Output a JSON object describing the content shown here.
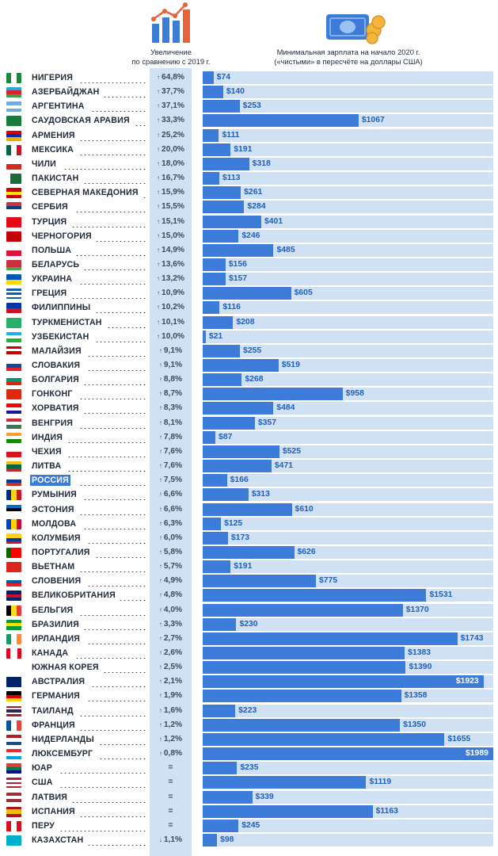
{
  "header": {
    "left_line1": "Увеличение",
    "left_line2": "по сравнению с 2019 г.",
    "right_line1": "Минимальная зарплата на начало 2020 г.",
    "right_line2": "(«чистыми» в пересчёте на доллары США)"
  },
  "colors": {
    "bar": "#3d7bd8",
    "lane": "#cfe1f3",
    "text": "#1f2a3a",
    "highlight": "#3d7bd8"
  },
  "chart_data": {
    "type": "bar",
    "orientation": "horizontal",
    "xlim": [
      0,
      1989
    ],
    "value_prefix": "$",
    "grid": false,
    "rows": [
      {
        "country": "НИГЕРИЯ",
        "change": "64,8%",
        "dir": "up",
        "wage": 74,
        "flag": [
          "#1a8a3a",
          "#ffffff",
          "#1a8a3a"
        ],
        "flag_dir": "v"
      },
      {
        "country": "АЗЕРБАЙДЖАН",
        "change": "37,7%",
        "dir": "up",
        "wage": 140,
        "flag": [
          "#2aa5dd",
          "#d9232e",
          "#3aa14a"
        ],
        "flag_dir": "h"
      },
      {
        "country": "АРГЕНТИНА",
        "change": "37,1%",
        "dir": "up",
        "wage": 253,
        "flag": [
          "#75aadb",
          "#ffffff",
          "#75aadb"
        ],
        "flag_dir": "h"
      },
      {
        "country": "САУДОВСКАЯ АРАВИЯ",
        "change": "33,3%",
        "dir": "up",
        "wage": 1067,
        "flag": [
          "#1a7a3a"
        ],
        "flag_dir": "h"
      },
      {
        "country": "АРМЕНИЯ",
        "change": "25,2%",
        "dir": "up",
        "wage": 111,
        "flag": [
          "#d90012",
          "#0033a0",
          "#f2a800"
        ],
        "flag_dir": "h"
      },
      {
        "country": "МЕКСИКА",
        "change": "20,0%",
        "dir": "up",
        "wage": 191,
        "flag": [
          "#006847",
          "#ffffff",
          "#ce1126"
        ],
        "flag_dir": "v"
      },
      {
        "country": "ЧИЛИ",
        "change": "18,0%",
        "dir": "up",
        "wage": 318,
        "flag": [
          "#ffffff",
          "#d52b1e"
        ],
        "flag_dir": "h"
      },
      {
        "country": "ПАКИСТАН",
        "change": "16,7%",
        "dir": "up",
        "wage": 113,
        "flag": [
          "#ffffff",
          "#1a6a3a",
          "#1a6a3a",
          "#1a6a3a"
        ],
        "flag_dir": "v"
      },
      {
        "country": "СЕВЕРНАЯ МАКЕДОНИЯ",
        "change": "15,9%",
        "dir": "up",
        "wage": 261,
        "flag": [
          "#d20000",
          "#ffe600",
          "#d20000"
        ],
        "flag_dir": "h"
      },
      {
        "country": "СЕРБИЯ",
        "change": "15,5%",
        "dir": "up",
        "wage": 284,
        "flag": [
          "#c6363c",
          "#0c4076",
          "#ffffff"
        ],
        "flag_dir": "h"
      },
      {
        "country": "ТУРЦИЯ",
        "change": "15,1%",
        "dir": "up",
        "wage": 401,
        "flag": [
          "#e30a17"
        ],
        "flag_dir": "h"
      },
      {
        "country": "ЧЕРНОГОРИЯ",
        "change": "15,0%",
        "dir": "up",
        "wage": 246,
        "flag": [
          "#c40308"
        ],
        "flag_dir": "h"
      },
      {
        "country": "ПОЛЬША",
        "change": "14,9%",
        "dir": "up",
        "wage": 485,
        "flag": [
          "#ffffff",
          "#dc143c"
        ],
        "flag_dir": "h"
      },
      {
        "country": "БЕЛАРУСЬ",
        "change": "13,6%",
        "dir": "up",
        "wage": 156,
        "flag": [
          "#c8313e",
          "#c8313e",
          "#4aa657"
        ],
        "flag_dir": "h"
      },
      {
        "country": "УКРАИНА",
        "change": "13,2%",
        "dir": "up",
        "wage": 157,
        "flag": [
          "#0057b7",
          "#ffd700"
        ],
        "flag_dir": "h"
      },
      {
        "country": "ГРЕЦИЯ",
        "change": "10,9%",
        "dir": "up",
        "wage": 605,
        "flag": [
          "#0d5eaf",
          "#ffffff",
          "#0d5eaf",
          "#ffffff",
          "#0d5eaf"
        ],
        "flag_dir": "h"
      },
      {
        "country": "ФИЛИППИНЫ",
        "change": "10,2%",
        "dir": "up",
        "wage": 116,
        "flag": [
          "#0038a8",
          "#ce1126"
        ],
        "flag_dir": "h"
      },
      {
        "country": "ТУРКМЕНИСТАН",
        "change": "10,1%",
        "dir": "up",
        "wage": 208,
        "flag": [
          "#28ae66"
        ],
        "flag_dir": "h"
      },
      {
        "country": "УЗБЕКИСТАН",
        "change": "10,0%",
        "dir": "up",
        "wage": 21,
        "flag": [
          "#1eb3e6",
          "#ffffff",
          "#1eb53a"
        ],
        "flag_dir": "h"
      },
      {
        "country": "МАЛАЙЗИЯ",
        "change": "9,1%",
        "dir": "up",
        "wage": 255,
        "flag": [
          "#cc0001",
          "#ffffff",
          "#cc0001",
          "#ffffff"
        ],
        "flag_dir": "h"
      },
      {
        "country": "СЛОВАКИЯ",
        "change": "9,1%",
        "dir": "up",
        "wage": 519,
        "flag": [
          "#ffffff",
          "#0b4ea2",
          "#ee1c25"
        ],
        "flag_dir": "h"
      },
      {
        "country": "БОЛГАРИЯ",
        "change": "8,8%",
        "dir": "up",
        "wage": 268,
        "flag": [
          "#ffffff",
          "#00966e",
          "#d62612"
        ],
        "flag_dir": "h"
      },
      {
        "country": "ГОНКОНГ",
        "change": "8,7%",
        "dir": "up",
        "wage": 958,
        "flag": [
          "#de2910"
        ],
        "flag_dir": "h"
      },
      {
        "country": "ХОРВАТИЯ",
        "change": "8,3%",
        "dir": "up",
        "wage": 484,
        "flag": [
          "#ff0000",
          "#ffffff",
          "#171796"
        ],
        "flag_dir": "h"
      },
      {
        "country": "ВЕНГРИЯ",
        "change": "8,1%",
        "dir": "up",
        "wage": 357,
        "flag": [
          "#ce2939",
          "#ffffff",
          "#477050"
        ],
        "flag_dir": "h"
      },
      {
        "country": "ИНДИЯ",
        "change": "7,8%",
        "dir": "up",
        "wage": 87,
        "flag": [
          "#ff9933",
          "#ffffff",
          "#138808"
        ],
        "flag_dir": "h"
      },
      {
        "country": "ЧЕХИЯ",
        "change": "7,6%",
        "dir": "up",
        "wage": 525,
        "flag": [
          "#ffffff",
          "#d7141a"
        ],
        "flag_dir": "h"
      },
      {
        "country": "ЛИТВА",
        "change": "7,6%",
        "dir": "up",
        "wage": 471,
        "flag": [
          "#fdb913",
          "#006a44",
          "#c1272d"
        ],
        "flag_dir": "h"
      },
      {
        "country": "РОССИЯ",
        "change": "7,5%",
        "dir": "up",
        "wage": 166,
        "highlight": true,
        "flag": [
          "#ffffff",
          "#0039a6",
          "#d52b1e"
        ],
        "flag_dir": "h"
      },
      {
        "country": "РУМЫНИЯ",
        "change": "6,6%",
        "dir": "up",
        "wage": 313,
        "flag": [
          "#002b7f",
          "#fcd116",
          "#ce1126"
        ],
        "flag_dir": "v"
      },
      {
        "country": "ЭСТОНИЯ",
        "change": "6,6%",
        "dir": "up",
        "wage": 610,
        "flag": [
          "#0072ce",
          "#000000",
          "#ffffff"
        ],
        "flag_dir": "h"
      },
      {
        "country": "МОЛДОВА",
        "change": "6,3%",
        "dir": "up",
        "wage": 125,
        "flag": [
          "#0046ae",
          "#ffd200",
          "#cc092f"
        ],
        "flag_dir": "v"
      },
      {
        "country": "КОЛУМБИЯ",
        "change": "6,0%",
        "dir": "up",
        "wage": 173,
        "flag": [
          "#fcd116",
          "#fcd116",
          "#003893",
          "#ce1126"
        ],
        "flag_dir": "h"
      },
      {
        "country": "ПОРТУГАЛИЯ",
        "change": "5,8%",
        "dir": "up",
        "wage": 626,
        "flag": [
          "#006600",
          "#ff0000",
          "#ff0000"
        ],
        "flag_dir": "v"
      },
      {
        "country": "ВЬЕТНАМ",
        "change": "5,7%",
        "dir": "up",
        "wage": 191,
        "flag": [
          "#da251d"
        ],
        "flag_dir": "h"
      },
      {
        "country": "СЛОВЕНИЯ",
        "change": "4,9%",
        "dir": "up",
        "wage": 775,
        "flag": [
          "#ffffff",
          "#005da4",
          "#ed1c24"
        ],
        "flag_dir": "h"
      },
      {
        "country": "ВЕЛИКОБРИТАНИЯ",
        "change": "4,8%",
        "dir": "up",
        "wage": 1531,
        "flag": [
          "#012169",
          "#c8102e",
          "#012169"
        ],
        "flag_dir": "h"
      },
      {
        "country": "БЕЛЬГИЯ",
        "change": "4,0%",
        "dir": "up",
        "wage": 1370,
        "flag": [
          "#000000",
          "#fdda24",
          "#ef3340"
        ],
        "flag_dir": "v"
      },
      {
        "country": "БРАЗИЛИЯ",
        "change": "3,3%",
        "dir": "up",
        "wage": 230,
        "flag": [
          "#009c3b",
          "#ffdf00",
          "#009c3b"
        ],
        "flag_dir": "h"
      },
      {
        "country": "ИРЛАНДИЯ",
        "change": "2,7%",
        "dir": "up",
        "wage": 1743,
        "flag": [
          "#169b62",
          "#ffffff",
          "#ff883e"
        ],
        "flag_dir": "v"
      },
      {
        "country": "КАНАДА",
        "change": "2,6%",
        "dir": "up",
        "wage": 1383,
        "flag": [
          "#d80621",
          "#ffffff",
          "#ffffff",
          "#d80621"
        ],
        "flag_dir": "v"
      },
      {
        "country": "ЮЖНАЯ КОРЕЯ",
        "change": "2,5%",
        "dir": "up",
        "wage": 1390,
        "flag": [
          "#ffffff"
        ],
        "flag_dir": "h"
      },
      {
        "country": "АВСТРАЛИЯ",
        "change": "2,1%",
        "dir": "up",
        "wage": 1923,
        "flag": [
          "#012169"
        ],
        "flag_dir": "h"
      },
      {
        "country": "ГЕРМАНИЯ",
        "change": "1,9%",
        "dir": "up",
        "wage": 1358,
        "flag": [
          "#000000",
          "#dd0000",
          "#ffce00"
        ],
        "flag_dir": "h"
      },
      {
        "country": "ТАИЛАНД",
        "change": "1,6%",
        "dir": "up",
        "wage": 223,
        "flag": [
          "#a51931",
          "#f4f5f8",
          "#2d2a4a",
          "#2d2a4a",
          "#f4f5f8",
          "#a51931"
        ],
        "flag_dir": "h"
      },
      {
        "country": "ФРАНЦИЯ",
        "change": "1,2%",
        "dir": "up",
        "wage": 1350,
        "flag": [
          "#0055a4",
          "#ffffff",
          "#ef4135"
        ],
        "flag_dir": "v"
      },
      {
        "country": "НИДЕРЛАНДЫ",
        "change": "1,2%",
        "dir": "up",
        "wage": 1655,
        "flag": [
          "#ae1c28",
          "#ffffff",
          "#21468b"
        ],
        "flag_dir": "h"
      },
      {
        "country": "ЛЮКСЕМБУРГ",
        "change": "0,8%",
        "dir": "up",
        "wage": 1989,
        "flag": [
          "#ed2939",
          "#ffffff",
          "#00a1de"
        ],
        "flag_dir": "h"
      },
      {
        "country": "ЮАР",
        "change": "=",
        "dir": "eq",
        "wage": 235,
        "flag": [
          "#e03c31",
          "#007749",
          "#001489"
        ],
        "flag_dir": "h"
      },
      {
        "country": "США",
        "change": "=",
        "dir": "eq",
        "wage": 1119,
        "flag": [
          "#b22234",
          "#ffffff",
          "#b22234",
          "#ffffff",
          "#b22234"
        ],
        "flag_dir": "h"
      },
      {
        "country": "ЛАТВИЯ",
        "change": "=",
        "dir": "eq",
        "wage": 339,
        "flag": [
          "#9e3039",
          "#ffffff",
          "#9e3039"
        ],
        "flag_dir": "h"
      },
      {
        "country": "ИСПАНИЯ",
        "change": "=",
        "dir": "eq",
        "wage": 1163,
        "flag": [
          "#aa151b",
          "#f1bf00",
          "#f1bf00",
          "#aa151b"
        ],
        "flag_dir": "h"
      },
      {
        "country": "ПЕРУ",
        "change": "=",
        "dir": "eq",
        "wage": 245,
        "flag": [
          "#d91023",
          "#ffffff",
          "#d91023"
        ],
        "flag_dir": "v"
      },
      {
        "country": "КАЗАХСТАН",
        "change": "1,1%",
        "dir": "down",
        "wage": 98,
        "flag": [
          "#00afca"
        ],
        "flag_dir": "h"
      }
    ]
  }
}
